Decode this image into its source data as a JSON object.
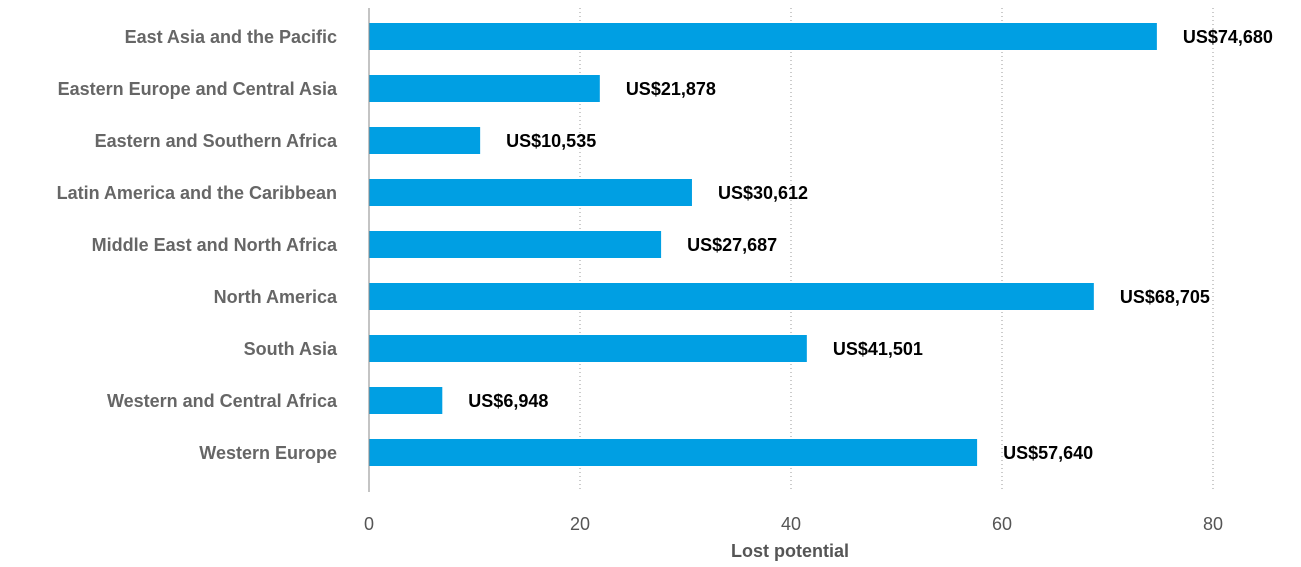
{
  "chart_data": {
    "type": "bar",
    "orientation": "horizontal",
    "categories": [
      "East Asia and the Pacific",
      "Eastern Europe and Central Asia",
      "Eastern and Southern Africa",
      "Latin America and the Caribbean",
      "Middle East and North Africa",
      "North America",
      "South Asia",
      "Western and Central Africa",
      "Western Europe"
    ],
    "values": [
      74.68,
      21.878,
      10.535,
      30.612,
      27.687,
      68.705,
      41.501,
      6.948,
      57.64
    ],
    "data_labels": [
      "US$74,680",
      "US$21,878",
      "US$10,535",
      "US$30,612",
      "US$27,687",
      "US$68,705",
      "US$41,501",
      "US$6,948",
      "US$57,640"
    ],
    "xlabel": "Lost potential",
    "ylabel": "",
    "xlim": [
      0,
      80
    ],
    "x_ticks": [
      0,
      20,
      40,
      60,
      80
    ],
    "x_tick_labels": [
      "0",
      "20",
      "40",
      "60",
      "80"
    ],
    "grid": true,
    "bar_color": "#009fe3"
  }
}
